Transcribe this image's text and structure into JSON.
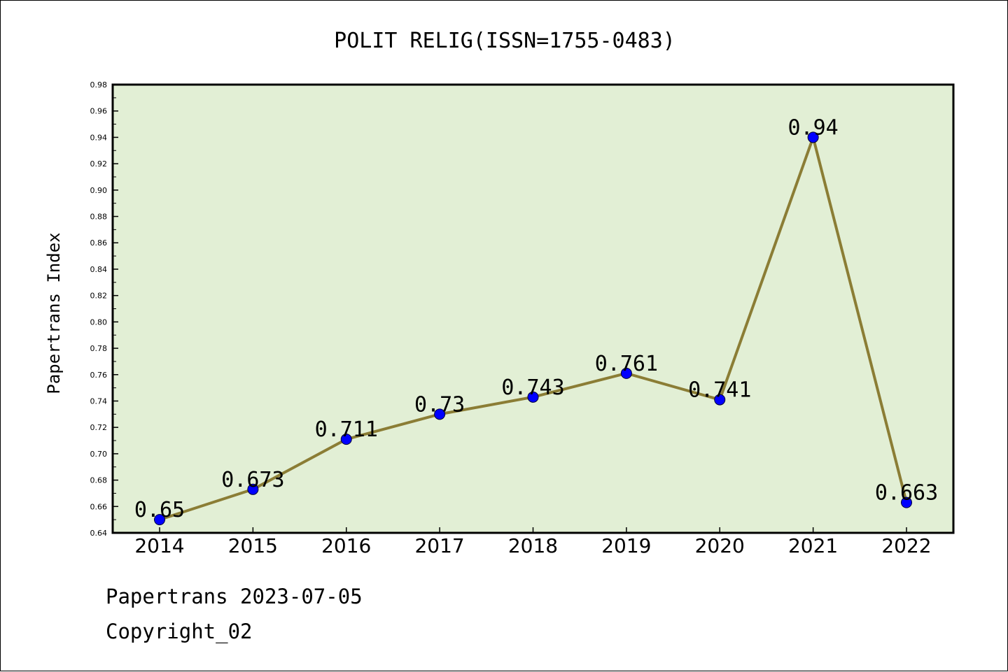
{
  "chart_data": {
    "type": "line",
    "title": "POLIT RELIG(ISSN=1755-0483)",
    "xlabel": "",
    "ylabel": "Papertrans Index",
    "categories": [
      "2014",
      "2015",
      "2016",
      "2017",
      "2018",
      "2019",
      "2020",
      "2021",
      "2022"
    ],
    "series": [
      {
        "values": [
          0.65,
          0.673,
          0.711,
          0.73,
          0.743,
          0.761,
          0.741,
          0.94,
          0.663
        ],
        "labels": [
          "0.65",
          "0.673",
          "0.711",
          "0.73",
          "0.743",
          "0.761",
          "0.741",
          "0.94",
          "0.663"
        ],
        "line_color": "#8b7d35",
        "marker_color": "#0000ff"
      }
    ],
    "ylim": [
      0.64,
      0.98
    ],
    "yticks": [
      "0.64",
      "0.66",
      "0.68",
      "0.70",
      "0.72",
      "0.74",
      "0.76",
      "0.78",
      "0.80",
      "0.82",
      "0.84",
      "0.86",
      "0.88",
      "0.90",
      "0.92",
      "0.94",
      "0.96",
      "0.98"
    ],
    "plot_background": "#e2efd5",
    "grid": false,
    "legend": "none"
  },
  "footer": {
    "line1": "Papertrans 2023-07-05",
    "line2": "Copyright_02"
  }
}
